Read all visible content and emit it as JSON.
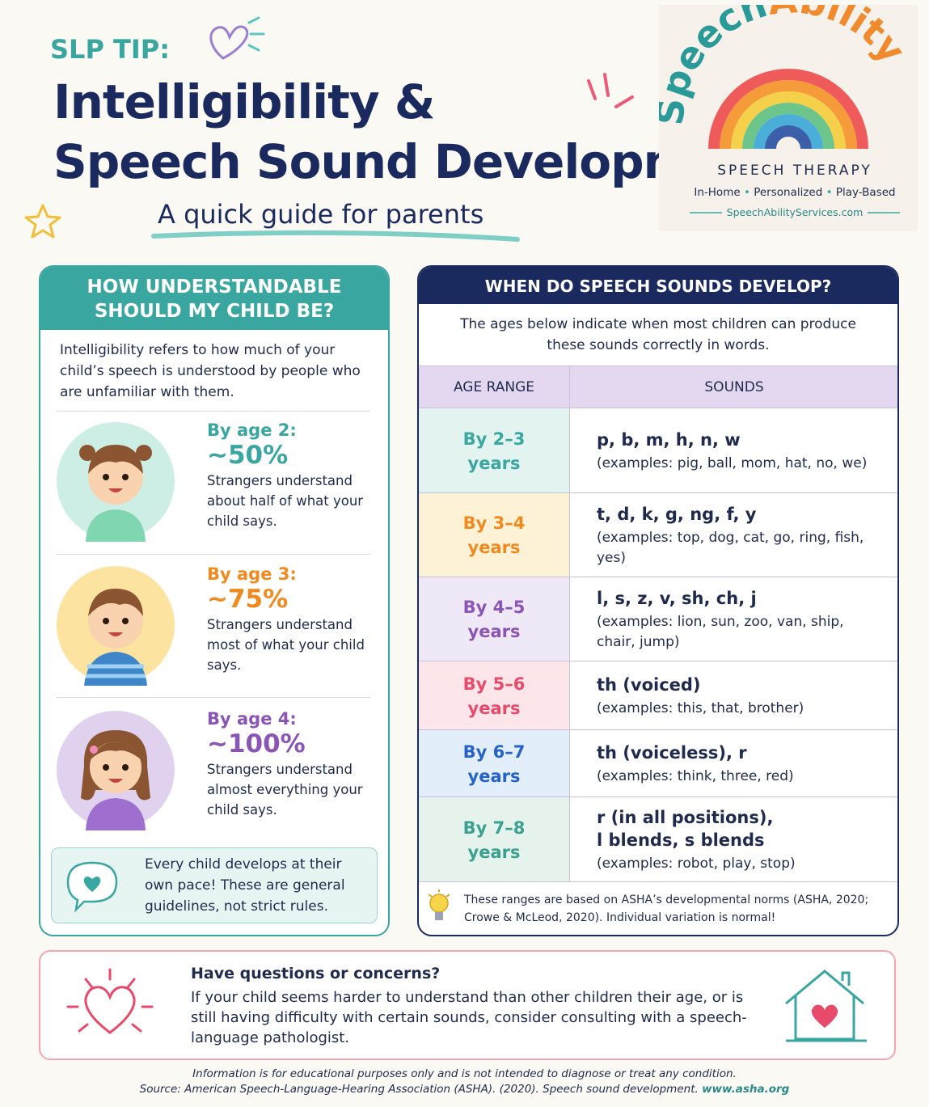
{
  "header": {
    "tip": "SLP TIP:",
    "title_lines": [
      "Intelligibility &",
      "Speech Sound Development"
    ],
    "subtitle": "A quick guide for parents"
  },
  "logo": {
    "brand_parts": [
      "Speech",
      "Ability"
    ],
    "tagline": "SPEECH THERAPY",
    "features": [
      "In-Home",
      "Personalized",
      "Play-Based"
    ],
    "url": "SpeechAbilityServices.com"
  },
  "intelligibility": {
    "heading_lines": [
      "HOW UNDERSTANDABLE",
      "SHOULD MY CHILD BE?"
    ],
    "intro": "Intelligibility refers to how much of your child’s speech is understood by people who are unfamiliar with them.",
    "stages": [
      {
        "age": "By age 2:",
        "percent": "~50%",
        "description": "Strangers understand about half of what your child says."
      },
      {
        "age": "By age 3:",
        "percent": "~75%",
        "description": "Strangers understand most of what your child says."
      },
      {
        "age": "By age 4:",
        "percent": "~100%",
        "description": "Strangers understand almost everything your child says."
      }
    ],
    "note": "Every child develops at their own pace! These are general guidelines, not strict rules."
  },
  "development": {
    "heading": "WHEN DO SPEECH SOUNDS DEVELOP?",
    "intro": "The ages below indicate when most children can produce these sounds correctly in words.",
    "table": {
      "headers": [
        "AGE RANGE",
        "SOUNDS"
      ],
      "rows": [
        {
          "age_lines": [
            "By 2–3",
            "years"
          ],
          "sound_lines": [
            "p, b, m, h, n, w"
          ],
          "examples": "(examples: pig, ball, mom, hat, no, we)"
        },
        {
          "age_lines": [
            "By 3–4",
            "years"
          ],
          "sound_lines": [
            "t, d, k, g, ng, f, y"
          ],
          "examples": "(examples: top, dog, cat, go, ring, fish, yes)"
        },
        {
          "age_lines": [
            "By 4–5",
            "years"
          ],
          "sound_lines": [
            "l, s, z, v, sh, ch, j"
          ],
          "examples": "(examples: lion, sun, zoo, van, ship, chair, jump)"
        },
        {
          "age_lines": [
            "By 5–6",
            "years"
          ],
          "sound_lines": [
            "th (voiced)"
          ],
          "examples": "(examples: this, that, brother)"
        },
        {
          "age_lines": [
            "By 6–7",
            "years"
          ],
          "sound_lines": [
            "th (voiceless), r"
          ],
          "examples": "(examples: think, three, red)"
        },
        {
          "age_lines": [
            "By 7–8",
            "years"
          ],
          "sound_lines": [
            "r (in all positions),",
            "l blends, s blends"
          ],
          "examples": "(examples: robot, play, stop)"
        }
      ]
    },
    "footnote": "These ranges are based on ASHA’s developmental norms (ASHA, 2020; Crowe & McLeod, 2020). Individual variation is normal!"
  },
  "concerns": {
    "title": "Have questions or concerns?",
    "body": "If your child seems harder to understand than other children their age, or is still having difficulty with certain sounds, consider consulting with a speech-language pathologist."
  },
  "footer": {
    "disclaimer": "Information is for educational purposes only and is not intended to diagnose or treat any condition.",
    "source": "Source: American Speech-Language-Hearing Association (ASHA). (2020). Speech sound development.",
    "link": "www.asha.org"
  }
}
